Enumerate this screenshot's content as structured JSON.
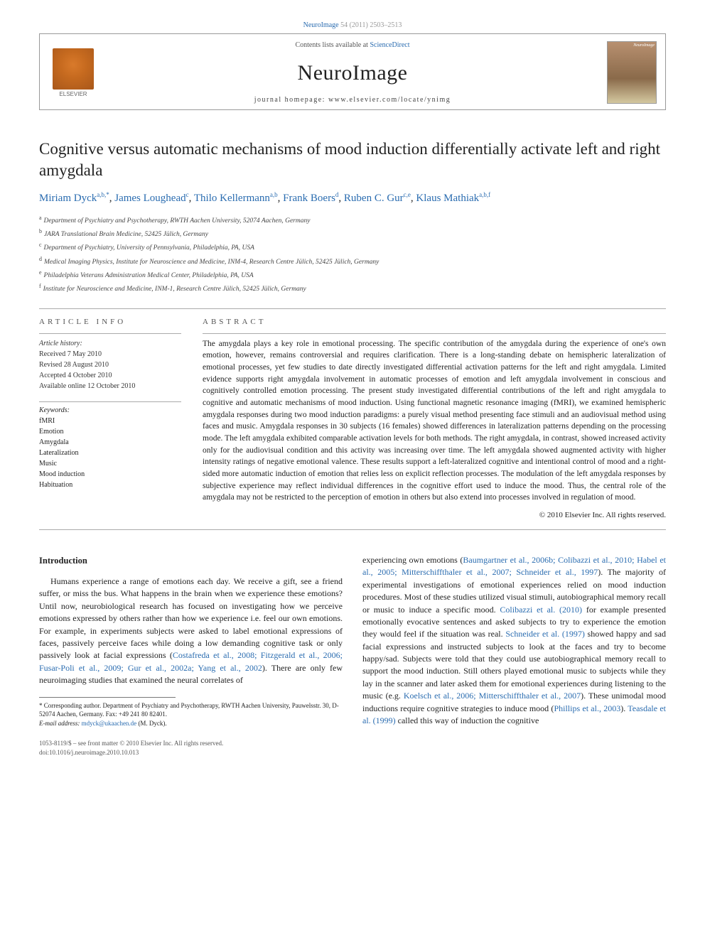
{
  "top_link": {
    "journal": "NeuroImage",
    "citation": "54 (2011) 2503–2513"
  },
  "header": {
    "publisher": "ELSEVIER",
    "contents_text": "Contents lists available at",
    "contents_link": "ScienceDirect",
    "journal_name": "NeuroImage",
    "homepage_label": "journal homepage: www.elsevier.com/locate/ynimg"
  },
  "article": {
    "title": "Cognitive versus automatic mechanisms of mood induction differentially activate left and right amygdala",
    "authors": [
      {
        "name": "Miriam Dyck",
        "aff": "a,b,",
        "corr": "*"
      },
      {
        "name": "James Loughead",
        "aff": "c"
      },
      {
        "name": "Thilo Kellermann",
        "aff": "a,b"
      },
      {
        "name": "Frank Boers",
        "aff": "d"
      },
      {
        "name": "Ruben C. Gur",
        "aff": "c,e"
      },
      {
        "name": "Klaus Mathiak",
        "aff": "a,b,f"
      }
    ],
    "affiliations": [
      {
        "key": "a",
        "text": "Department of Psychiatry and Psychotherapy, RWTH Aachen University, 52074 Aachen, Germany"
      },
      {
        "key": "b",
        "text": "JARA Translational Brain Medicine, 52425 Jülich, Germany"
      },
      {
        "key": "c",
        "text": "Department of Psychiatry, University of Pennsylvania, Philadelphia, PA, USA"
      },
      {
        "key": "d",
        "text": "Medical Imaging Physics, Institute for Neuroscience and Medicine, INM-4, Research Centre Jülich, 52425 Jülich, Germany"
      },
      {
        "key": "e",
        "text": "Philadelphia Veterans Administration Medical Center, Philadelphia, PA, USA"
      },
      {
        "key": "f",
        "text": "Institute for Neuroscience and Medicine, INM-1, Research Centre Jülich, 52425 Jülich, Germany"
      }
    ]
  },
  "info_headings": {
    "left": "ARTICLE INFO",
    "right": "ABSTRACT"
  },
  "history": {
    "label": "Article history:",
    "received": "Received 7 May 2010",
    "revised": "Revised 28 August 2010",
    "accepted": "Accepted 4 October 2010",
    "online": "Available online 12 October 2010"
  },
  "keywords": {
    "label": "Keywords:",
    "items": [
      "fMRI",
      "Emotion",
      "Amygdala",
      "Lateralization",
      "Music",
      "Mood induction",
      "Habituation"
    ]
  },
  "abstract": "The amygdala plays a key role in emotional processing. The specific contribution of the amygdala during the experience of one's own emotion, however, remains controversial and requires clarification. There is a long-standing debate on hemispheric lateralization of emotional processes, yet few studies to date directly investigated differential activation patterns for the left and right amygdala. Limited evidence supports right amygdala involvement in automatic processes of emotion and left amygdala involvement in conscious and cognitively controlled emotion processing. The present study investigated differential contributions of the left and right amygdala to cognitive and automatic mechanisms of mood induction. Using functional magnetic resonance imaging (fMRI), we examined hemispheric amygdala responses during two mood induction paradigms: a purely visual method presenting face stimuli and an audiovisual method using faces and music. Amygdala responses in 30 subjects (16 females) showed differences in lateralization patterns depending on the processing mode. The left amygdala exhibited comparable activation levels for both methods. The right amygdala, in contrast, showed increased activity only for the audiovisual condition and this activity was increasing over time. The left amygdala showed augmented activity with higher intensity ratings of negative emotional valence. These results support a left-lateralized cognitive and intentional control of mood and a right-sided more automatic induction of emotion that relies less on explicit reflection processes. The modulation of the left amygdala responses by subjective experience may reflect individual differences in the cognitive effort used to induce the mood. Thus, the central role of the amygdala may not be restricted to the perception of emotion in others but also extend into processes involved in regulation of mood.",
  "copyright": "© 2010 Elsevier Inc. All rights reserved.",
  "intro": {
    "heading": "Introduction",
    "col1_p1a": "Humans experience a range of emotions each day. We receive a gift, see a friend suffer, or miss the bus. What happens in the brain when we experience these emotions? Until now, neurobiological research has focused on investigating how we perceive emotions expressed by others rather than how we experience i.e. feel our own emotions. For example, in experiments subjects were asked to label emotional expressions of faces, passively perceive faces while doing a low demanding cognitive task or only passively look at facial expressions (",
    "col1_link1": "Costafreda et al., 2008; Fitzgerald et al., 2006; Fusar-Poli et al., 2009; Gur et al., 2002a; Yang et al., 2002",
    "col1_p1b": "). There are only few neuroimaging studies that examined the neural correlates of",
    "col2_p1a": "experiencing own emotions (",
    "col2_link1": "Baumgartner et al., 2006b; Colibazzi et al., 2010; Habel et al., 2005; Mitterschiffthaler et al., 2007; Schneider et al., 1997",
    "col2_p1b": "). The majority of experimental investigations of emotional experiences relied on mood induction procedures. Most of these studies utilized visual stimuli, autobiographical memory recall or music to induce a specific mood. ",
    "col2_link2": "Colibazzi et al. (2010)",
    "col2_p1c": " for example presented emotionally evocative sentences and asked subjects to try to experience the emotion they would feel if the situation was real. ",
    "col2_link3": "Schneider et al. (1997)",
    "col2_p1d": " showed happy and sad facial expressions and instructed subjects to look at the faces and try to become happy/sad. Subjects were told that they could use autobiographical memory recall to support the mood induction. Still others played emotional music to subjects while they lay in the scanner and later asked them for emotional experiences during listening to the music (e.g. ",
    "col2_link4": "Koelsch et al., 2006; Mitterschiffthaler et al., 2007",
    "col2_p1e": "). These unimodal mood inductions require cognitive strategies to induce mood (",
    "col2_link5": "Phillips et al., 2003",
    "col2_p1f": "). ",
    "col2_link6": "Teasdale et al. (1999)",
    "col2_p1g": " called this way of induction the cognitive"
  },
  "footnote": {
    "corr_label": "* Corresponding author. Department of Psychiatry and Psychotherapy, RWTH Aachen University, Pauwelsstr. 30, D-52074 Aachen, Germany. Fax: +49 241 80 82401.",
    "email_label": "E-mail address:",
    "email": "mdyck@ukaachen.de",
    "email_who": "(M. Dyck)."
  },
  "bottom": {
    "issn": "1053-8119/$ – see front matter © 2010 Elsevier Inc. All rights reserved.",
    "doi": "doi:10.1016/j.neuroimage.2010.10.013"
  },
  "colors": {
    "link": "#2a6cb0",
    "text": "#222222",
    "rule": "#aaaaaa",
    "muted": "#555555"
  }
}
